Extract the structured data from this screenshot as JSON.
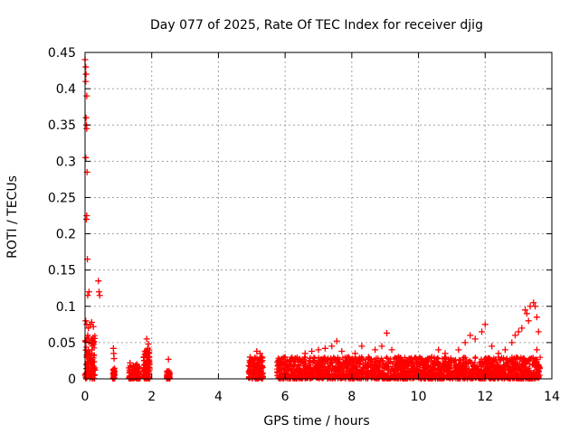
{
  "chart_data": {
    "type": "scatter",
    "title": "Day 077 of 2025, Rate Of TEC Index for receiver djig",
    "xlabel": "GPS time / hours",
    "ylabel": "ROTI / TECUs",
    "xlim": [
      0,
      14
    ],
    "ylim": [
      0,
      0.45
    ],
    "xticks": [
      0,
      2,
      4,
      6,
      8,
      10,
      12,
      14
    ],
    "xtick_labels": [
      "0",
      "2",
      "4",
      "6",
      "8",
      "10",
      "12",
      "14"
    ],
    "yticks": [
      0,
      0.05,
      0.1,
      0.15,
      0.2,
      0.25,
      0.3,
      0.35,
      0.4,
      0.45
    ],
    "ytick_labels": [
      "0",
      "0.05",
      "0.1",
      "0.15",
      "0.2",
      "0.25",
      "0.3",
      "0.35",
      "0.4",
      "0.45"
    ],
    "grid": true,
    "marker": "+",
    "color": "#ff0000",
    "series": [
      {
        "name": "ROTI",
        "points": [
          [
            0.0,
            0.44
          ],
          [
            0.02,
            0.43
          ],
          [
            0.03,
            0.42
          ],
          [
            0.02,
            0.41
          ],
          [
            0.05,
            0.39
          ],
          [
            0.03,
            0.36
          ],
          [
            0.04,
            0.35
          ],
          [
            0.05,
            0.345
          ],
          [
            0.02,
            0.305
          ],
          [
            0.06,
            0.285
          ],
          [
            0.05,
            0.225
          ],
          [
            0.04,
            0.22
          ],
          [
            0.07,
            0.165
          ],
          [
            0.08,
            0.115
          ],
          [
            0.12,
            0.12
          ],
          [
            0.4,
            0.135
          ],
          [
            0.42,
            0.12
          ],
          [
            0.44,
            0.115
          ],
          [
            0.02,
            0.08
          ],
          [
            0.05,
            0.075
          ],
          [
            0.1,
            0.07
          ],
          [
            0.15,
            0.075
          ],
          [
            0.2,
            0.078
          ],
          [
            0.25,
            0.072
          ],
          [
            0.08,
            0.06
          ],
          [
            0.12,
            0.055
          ],
          [
            0.18,
            0.05
          ],
          [
            0.22,
            0.045
          ],
          [
            0.1,
            0.04
          ],
          [
            0.15,
            0.035
          ],
          [
            0.05,
            0.03
          ],
          [
            0.2,
            0.025
          ],
          [
            0.1,
            0.02
          ],
          [
            0.25,
            0.015
          ],
          [
            0.08,
            0.01
          ],
          [
            0.15,
            0.008
          ],
          [
            0.3,
            0.012
          ],
          [
            0.0,
            0.005
          ],
          [
            0.85,
            0.042
          ],
          [
            0.86,
            0.035
          ],
          [
            0.87,
            0.028
          ],
          [
            0.85,
            0.012
          ],
          [
            0.86,
            0.008
          ],
          [
            0.88,
            0.005
          ],
          [
            1.35,
            0.022
          ],
          [
            1.45,
            0.018
          ],
          [
            1.55,
            0.02
          ],
          [
            1.4,
            0.012
          ],
          [
            1.5,
            0.008
          ],
          [
            1.6,
            0.005
          ],
          [
            1.85,
            0.055
          ],
          [
            1.9,
            0.048
          ],
          [
            1.88,
            0.042
          ],
          [
            1.82,
            0.035
          ],
          [
            1.92,
            0.03
          ],
          [
            1.78,
            0.025
          ],
          [
            1.85,
            0.018
          ],
          [
            1.9,
            0.01
          ],
          [
            1.8,
            0.005
          ],
          [
            2.5,
            0.027
          ],
          [
            2.48,
            0.01
          ],
          [
            2.52,
            0.006
          ],
          [
            2.5,
            0.003
          ],
          [
            4.95,
            0.03
          ],
          [
            5.05,
            0.025
          ],
          [
            5.15,
            0.038
          ],
          [
            5.25,
            0.035
          ],
          [
            5.3,
            0.03
          ],
          [
            5.1,
            0.018
          ],
          [
            5.2,
            0.012
          ],
          [
            5.0,
            0.008
          ],
          [
            5.3,
            0.005
          ],
          [
            5.8,
            0.025
          ],
          [
            6.0,
            0.03
          ],
          [
            6.3,
            0.028
          ],
          [
            6.6,
            0.035
          ],
          [
            6.8,
            0.038
          ],
          [
            7.0,
            0.04
          ],
          [
            7.2,
            0.042
          ],
          [
            7.4,
            0.045
          ],
          [
            7.55,
            0.052
          ],
          [
            7.7,
            0.038
          ],
          [
            7.9,
            0.03
          ],
          [
            8.1,
            0.035
          ],
          [
            8.3,
            0.045
          ],
          [
            8.5,
            0.03
          ],
          [
            8.7,
            0.04
          ],
          [
            8.9,
            0.045
          ],
          [
            9.05,
            0.063
          ],
          [
            9.2,
            0.04
          ],
          [
            9.4,
            0.03
          ],
          [
            9.6,
            0.025
          ],
          [
            9.8,
            0.022
          ],
          [
            10.0,
            0.02
          ],
          [
            10.2,
            0.025
          ],
          [
            10.4,
            0.03
          ],
          [
            10.6,
            0.04
          ],
          [
            10.8,
            0.035
          ],
          [
            11.0,
            0.025
          ],
          [
            11.2,
            0.04
          ],
          [
            11.4,
            0.05
          ],
          [
            11.55,
            0.06
          ],
          [
            11.7,
            0.055
          ],
          [
            11.9,
            0.065
          ],
          [
            12.0,
            0.075
          ],
          [
            12.2,
            0.045
          ],
          [
            12.4,
            0.035
          ],
          [
            12.6,
            0.04
          ],
          [
            12.8,
            0.05
          ],
          [
            12.9,
            0.06
          ],
          [
            13.0,
            0.065
          ],
          [
            13.1,
            0.07
          ],
          [
            13.2,
            0.095
          ],
          [
            13.25,
            0.09
          ],
          [
            13.3,
            0.08
          ],
          [
            13.35,
            0.1
          ],
          [
            13.45,
            0.105
          ],
          [
            13.5,
            0.1
          ],
          [
            13.55,
            0.085
          ],
          [
            13.6,
            0.065
          ],
          [
            13.55,
            0.04
          ],
          [
            13.5,
            0.02
          ],
          [
            13.6,
            0.01
          ]
        ]
      }
    ]
  }
}
